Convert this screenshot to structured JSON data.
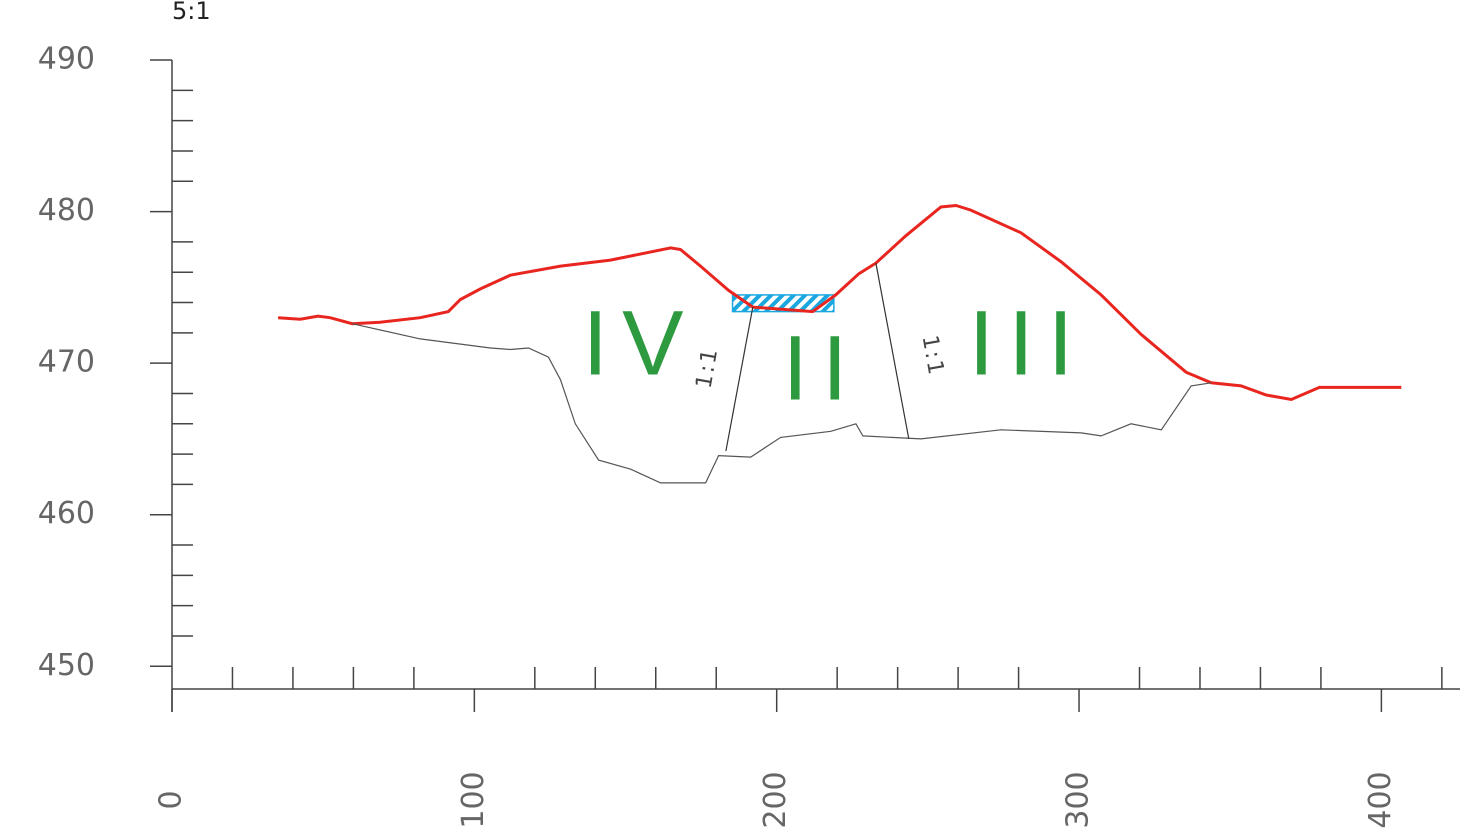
{
  "chart_data": {
    "type": "line",
    "title": "5:1",
    "xlim": [
      0,
      426
    ],
    "ylim": [
      448.5,
      490
    ],
    "xticks": [
      0,
      100,
      200,
      300,
      400
    ],
    "yticks": [
      450,
      460,
      470,
      480,
      490
    ],
    "xminor": [
      20,
      40,
      60,
      80,
      120,
      140,
      160,
      180,
      220,
      240,
      260,
      280,
      320,
      340,
      360,
      380,
      420
    ],
    "yminor": [
      452,
      454,
      456,
      458,
      462,
      464,
      466,
      468,
      472,
      474,
      476,
      478,
      482,
      484,
      486,
      488
    ],
    "series": [
      {
        "color": "#e8261f",
        "x": [
          35.1,
          42.4,
          48.3,
          52.3,
          59.6,
          68.9,
          82.1,
          91.4,
          95.4,
          102.0,
          111.9,
          128.5,
          145.0,
          164.9,
          168.2,
          174.8,
          184.1,
          192.1,
          211.9,
          219.5,
          227.2,
          232.8,
          242.7,
          254.3,
          259.3,
          264.2,
          280.8,
          294.0,
          307.3,
          320.5,
          335.4,
          343.7,
          353.6,
          361.9,
          370.2,
          379.5,
          406.6
        ],
        "values": [
          473.0,
          472.9,
          473.1,
          473.0,
          472.6,
          472.7,
          473.0,
          473.4,
          474.2,
          474.9,
          475.8,
          476.4,
          476.8,
          477.6,
          477.5,
          476.4,
          474.8,
          473.7,
          473.4,
          474.5,
          475.9,
          476.6,
          478.4,
          480.3,
          480.4,
          480.1,
          478.6,
          476.7,
          474.5,
          471.9,
          469.4,
          468.7,
          468.5,
          467.9,
          467.6,
          468.4,
          468.4
        ]
      },
      {
        "color": "#555555",
        "x": [
          59.6,
          82.1,
          105.3,
          111.9,
          117.9,
          124.5,
          128.5,
          133.4,
          141.1,
          151.7,
          161.6,
          176.5,
          180.8,
          191.4,
          201.3,
          217.9,
          226.2,
          228.5,
          247.7,
          274.2,
          300.7,
          307.3,
          317.2,
          327.2,
          337.1,
          343.7
        ],
        "values": [
          472.6,
          471.6,
          471.0,
          470.9,
          471.0,
          470.4,
          468.9,
          466.0,
          463.6,
          463.0,
          462.1,
          462.1,
          463.9,
          463.8,
          465.1,
          465.5,
          466.0,
          465.2,
          465.0,
          465.6,
          465.4,
          465.2,
          466.0,
          465.6,
          468.5,
          468.7
        ]
      },
      {
        "color": "#333333",
        "x": [
          192.1,
          183.2
        ],
        "values": [
          473.7,
          464.2
        ]
      },
      {
        "color": "#333333",
        "x": [
          232.8,
          243.7
        ],
        "values": [
          476.6,
          465.0
        ]
      }
    ],
    "water": {
      "color": "#1aa7e0",
      "xlim": [
        185.4,
        218.9
      ],
      "ylim": [
        473.4,
        474.5
      ]
    },
    "annotations": [
      "IV",
      "II",
      "III",
      "1:1",
      "1:1"
    ]
  }
}
